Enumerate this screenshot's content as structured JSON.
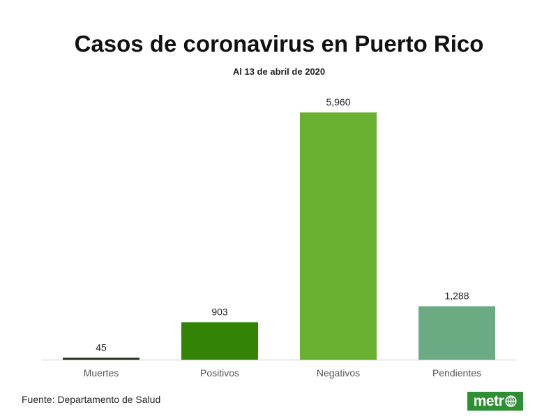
{
  "chart_data": {
    "type": "bar",
    "title": "Casos de coronavirus en Puerto Rico",
    "subtitle": "Al 13 de abril de 2020",
    "categories": [
      "Muertes",
      "Positivos",
      "Negativos",
      "Pendientes"
    ],
    "values": [
      45,
      903,
      5960,
      1288
    ],
    "value_labels": [
      "45",
      "903",
      "5,960",
      "1,288"
    ],
    "colors": [
      "#1c2b12",
      "#338405",
      "#6ab030",
      "#6bab84"
    ],
    "xlabel": "",
    "ylabel": "",
    "ylim": [
      0,
      5960
    ],
    "grid": false
  },
  "source": "Fuente: Departamento de Salud",
  "logo": {
    "text": "metr",
    "icon": "globe-icon"
  },
  "colors": {
    "baseline": "#c8c8c8",
    "label": "#222222",
    "category_label": "#555555"
  }
}
